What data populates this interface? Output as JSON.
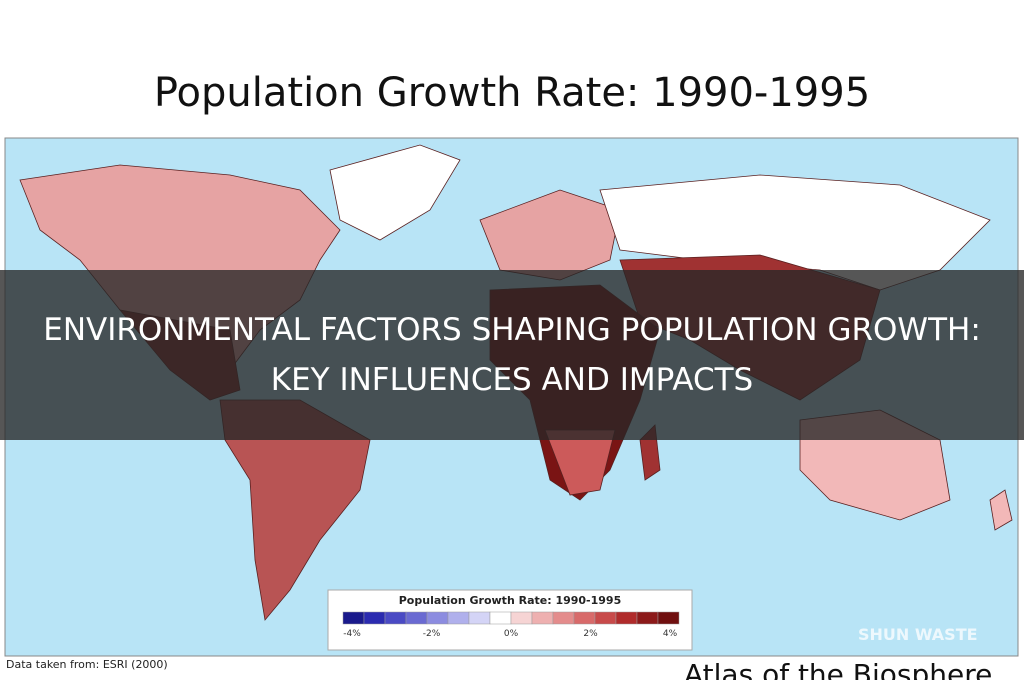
{
  "map": {
    "title": "Population Growth Rate: 1990-1995",
    "source": "Data taken from:  ESRI (2000)",
    "atlas": "Atlas of the Biosphere",
    "watermark": "SHUN WASTE",
    "legend": {
      "title": "Population Growth Rate: 1990-1995",
      "colors": [
        "#1a1a8c",
        "#2b2bb0",
        "#4a4ac4",
        "#6a6ad2",
        "#8c8ce0",
        "#b0b0ec",
        "#d4d4f6",
        "#ffffff",
        "#f6d4d4",
        "#eeb0b0",
        "#e48c8c",
        "#d86a6a",
        "#c84a4a",
        "#b02b2b",
        "#8c1a1a",
        "#700f0f"
      ],
      "labels": [
        "-4%",
        "-2%",
        "0%",
        "2%",
        "4%"
      ]
    }
  },
  "overlay": {
    "title": "ENVIRONMENTAL FACTORS SHAPING POPULATION GROWTH: KEY INFLUENCES AND IMPACTS"
  }
}
